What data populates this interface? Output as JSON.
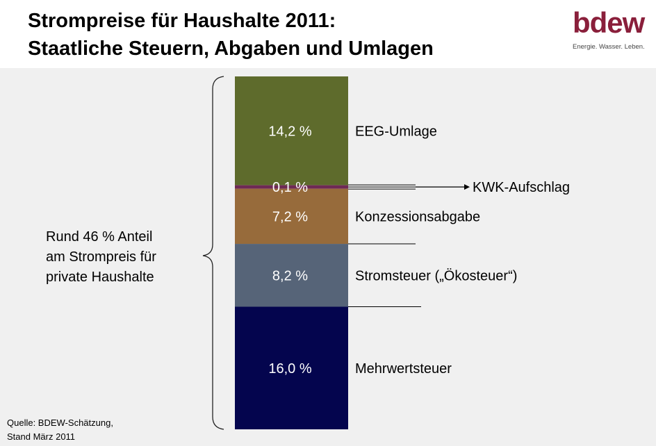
{
  "title": {
    "line1": "Strompreise für Haushalte 2011:",
    "line2": "Staatliche Steuern, Abgaben und Umlagen"
  },
  "logo": {
    "wordmark": "bdew",
    "tagline": "Energie. Wasser. Leben.",
    "color": "#8a1f3b"
  },
  "annotation": {
    "line1": "Rund 46 % Anteil",
    "line2": "am Strompreis für",
    "line3": "private Haushalte"
  },
  "source": {
    "line1": "Quelle: BDEW-Schätzung,",
    "line2": "Stand März 2011"
  },
  "chart_data": {
    "type": "stacked-bar",
    "unit": "%",
    "total_label": "Rund 46 % Anteil am Strompreis für private Haushalte",
    "segments": [
      {
        "name": "EEG-Umlage",
        "value": 14.2,
        "label": "14,2 %",
        "color": "#5e6b2c"
      },
      {
        "name": "KWK-Aufschlag",
        "value": 0.1,
        "label": "0,1 %",
        "color": "#6e2a55"
      },
      {
        "name": "Konzessionsabgabe",
        "value": 7.2,
        "label": "7,2 %",
        "color": "#976b3b"
      },
      {
        "name": "Stromsteuer („Ökosteuer“)",
        "value": 8.2,
        "label": "8,2 %",
        "color": "#566478"
      },
      {
        "name": "Mehrwertsteuer",
        "value": 16.0,
        "label": "16,0 %",
        "color": "#04054e"
      }
    ]
  }
}
